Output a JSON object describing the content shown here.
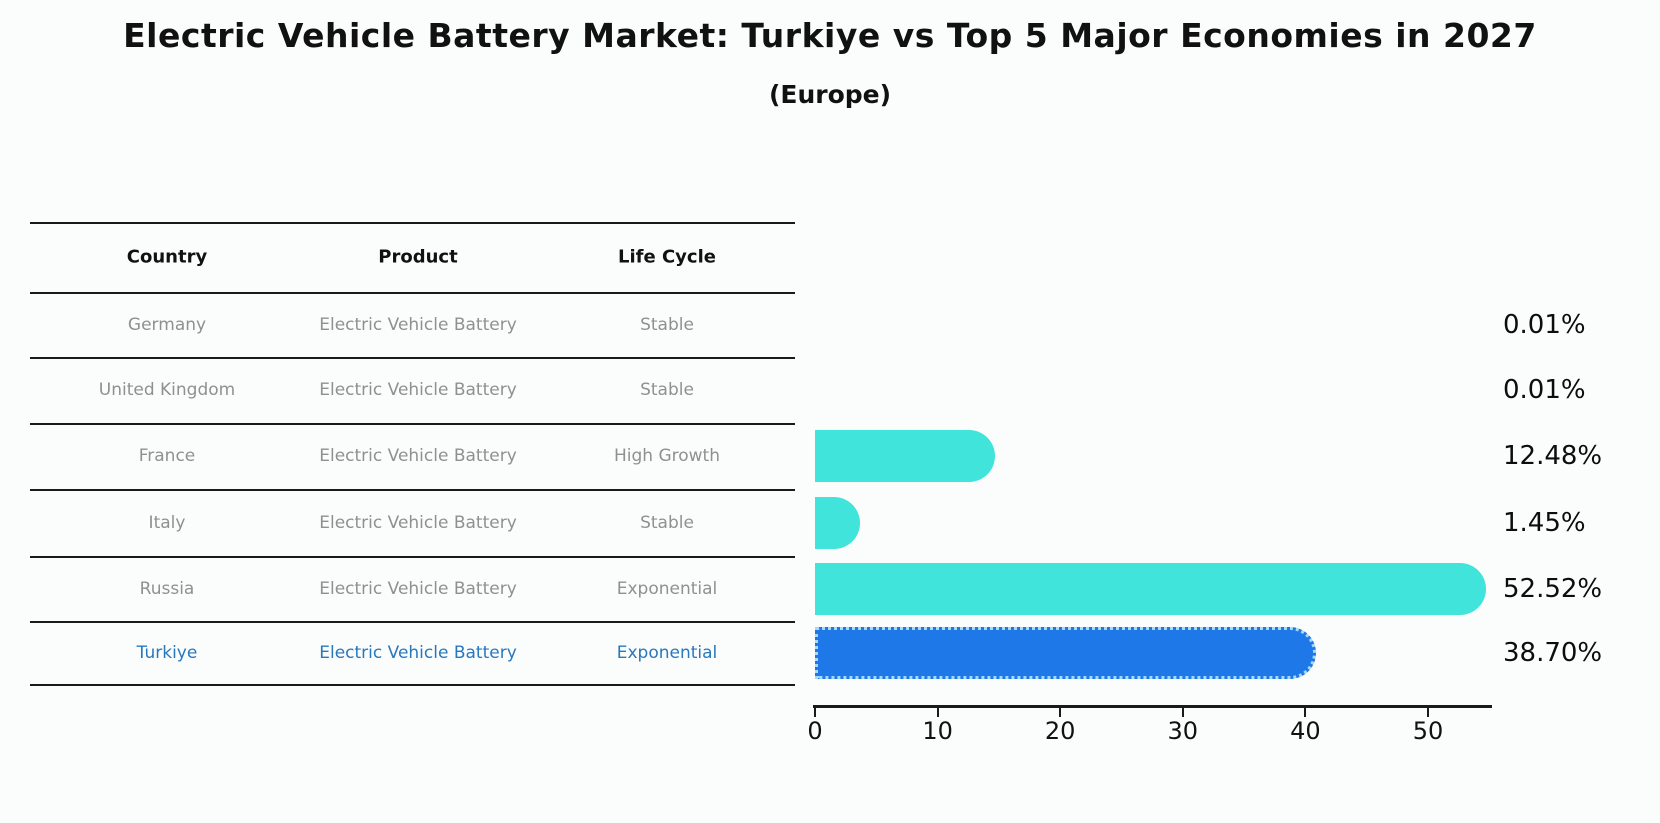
{
  "header": {
    "title": "Electric Vehicle Battery Market: Turkiye vs Top 5 Major Economies in 2027",
    "subtitle": "(Europe)"
  },
  "table": {
    "headers": [
      "Country",
      "Product",
      "Life Cycle"
    ],
    "rows": [
      {
        "country": "Germany",
        "product": "Electric Vehicle Battery",
        "life_cycle": "Stable",
        "value": 0.01,
        "value_label": "0.01%",
        "highlight": false
      },
      {
        "country": "United Kingdom",
        "product": "Electric Vehicle Battery",
        "life_cycle": "Stable",
        "value": 0.01,
        "value_label": "0.01%",
        "highlight": false
      },
      {
        "country": "France",
        "product": "Electric Vehicle Battery",
        "life_cycle": "High Growth",
        "value": 12.48,
        "value_label": "12.48%",
        "highlight": false
      },
      {
        "country": "Italy",
        "product": "Electric Vehicle Battery",
        "life_cycle": "Stable",
        "value": 1.45,
        "value_label": "1.45%",
        "highlight": false
      },
      {
        "country": "Russia",
        "product": "Electric Vehicle Battery",
        "life_cycle": "Exponential",
        "value": 52.52,
        "value_label": "52.52%",
        "highlight": false
      },
      {
        "country": "Turkiye",
        "product": "Electric Vehicle Battery",
        "life_cycle": "Exponential",
        "value": 38.7,
        "value_label": "38.70%",
        "highlight": true
      }
    ]
  },
  "chart_data": {
    "type": "bar",
    "orientation": "horizontal",
    "title": "Electric Vehicle Battery Market: Turkiye vs Top 5 Major Economies in 2027",
    "subtitle": "(Europe)",
    "categories": [
      "Germany",
      "United Kingdom",
      "France",
      "Italy",
      "Russia",
      "Turkiye"
    ],
    "values": [
      0.01,
      0.01,
      12.48,
      1.45,
      52.52,
      38.7
    ],
    "value_labels": [
      "0.01%",
      "0.01%",
      "12.48%",
      "1.45%",
      "52.52%",
      "38.70%"
    ],
    "xlabel": "",
    "ylabel": "",
    "xlim": [
      0,
      55
    ],
    "x_ticks": [
      0,
      10,
      20,
      30,
      40,
      50
    ],
    "grid": false,
    "legend": false,
    "bar_color": "#40e4da",
    "highlight_bar_color": "#1e78e8",
    "highlight_category": "Turkiye"
  },
  "colors": {
    "bar_cyan": "#40e4da",
    "bar_blue": "#1e78e8",
    "highlight_text": "#2878be",
    "muted_text": "#909090",
    "heading_text": "#111111",
    "axis": "#1a1a1a",
    "turkiye_bar_border": "#a6d9f8"
  }
}
